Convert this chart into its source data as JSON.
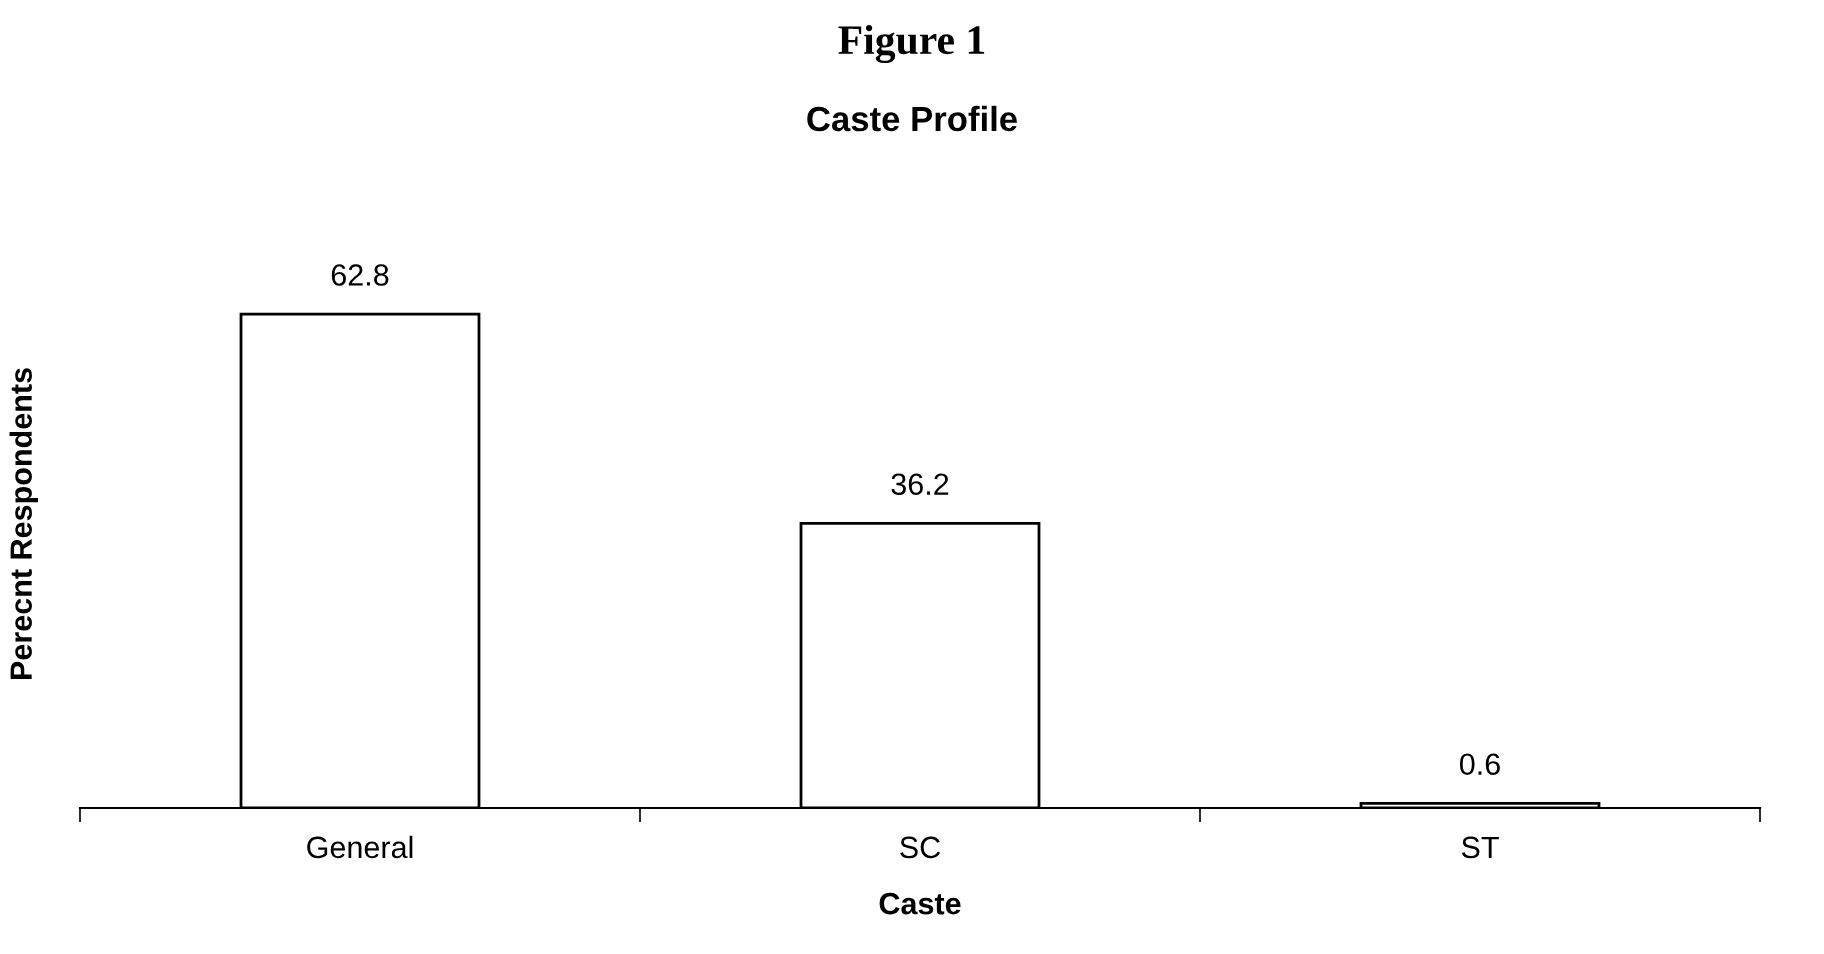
{
  "chart_data": {
    "type": "bar",
    "title": "Figure 1",
    "subtitle": "Caste Profile",
    "xlabel": "Caste",
    "ylabel": "Perecnt Respondents",
    "categories": [
      "General",
      "SC",
      "ST"
    ],
    "values": [
      62.8,
      36.2,
      0.6
    ],
    "color": "#ffffff",
    "data_labels": true,
    "grid": false,
    "legend": false
  }
}
